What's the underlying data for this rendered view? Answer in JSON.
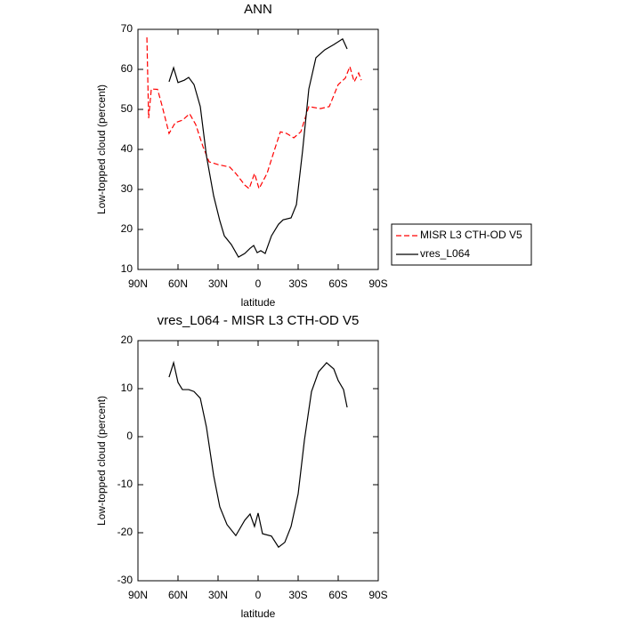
{
  "chart_data": [
    {
      "type": "line",
      "title": "ANN",
      "xlabel": "latitude",
      "ylabel": "Low-topped cloud (percent)",
      "xlim": [
        90,
        -90
      ],
      "xticks": [
        {
          "value": 90,
          "label": "90N"
        },
        {
          "value": 60,
          "label": "60N"
        },
        {
          "value": 30,
          "label": "30N"
        },
        0,
        {
          "value": -30,
          "label": "30S"
        },
        {
          "value": -60,
          "label": "60S"
        },
        {
          "value": -90,
          "label": "90S"
        }
      ],
      "ylim": [
        10,
        70
      ],
      "yticks": [
        10,
        20,
        30,
        40,
        50,
        60,
        70
      ],
      "legend": "outside right",
      "series": [
        {
          "name": "MISR L3 CTH-OD V5",
          "color": "#ff0000",
          "line_style": "dashed",
          "x": [
            83.3,
            82,
            80,
            75.3,
            72,
            66.7,
            62,
            56.7,
            51.3,
            46.7,
            41.3,
            36.7,
            30,
            21.3,
            16.7,
            10,
            6.7,
            2.7,
            -0.7,
            -6.7,
            -12,
            -16.7,
            -21.3,
            -26.7,
            -32,
            -38,
            -46.7,
            -53.3,
            -60,
            -65.3,
            -68.7,
            -72,
            -75.3,
            -77.3
          ],
          "values": [
            68,
            47.8,
            55.1,
            55,
            51,
            44,
            46.7,
            47.3,
            48.9,
            46.2,
            40.7,
            36.9,
            36.2,
            35.6,
            34,
            31.1,
            30.2,
            34,
            30.2,
            34,
            39.6,
            44.4,
            44,
            42.9,
            44.4,
            50.7,
            50.2,
            50.7,
            56.2,
            57.8,
            60.7,
            56.9,
            59.1,
            57.3
          ]
        },
        {
          "name": "vres_L064",
          "color": "#000000",
          "line_style": "solid",
          "x": [
            66.7,
            63.3,
            60,
            55.3,
            52,
            48,
            43.3,
            38.7,
            33.3,
            28.7,
            25.3,
            20,
            14.7,
            10,
            6,
            3.3,
            0.7,
            -2,
            -5.3,
            -10,
            -15.3,
            -18.7,
            -24.7,
            -28.7,
            -33.3,
            -38,
            -43.3,
            -50,
            -56.7,
            -63.3,
            -66.7
          ],
          "values": [
            56.9,
            60.4,
            56.7,
            57.3,
            58,
            56.2,
            50.7,
            38.4,
            28.4,
            22.2,
            18.4,
            16.2,
            13.1,
            14,
            15.3,
            16,
            14.2,
            14.7,
            14,
            18.4,
            21.3,
            22.4,
            22.9,
            26.2,
            39.6,
            55.1,
            62.9,
            64.9,
            66.2,
            67.6,
            65.1
          ]
        }
      ]
    },
    {
      "type": "line",
      "title": "vres_L064 - MISR L3 CTH-OD V5",
      "xlabel": "latitude",
      "ylabel": "Low-topped cloud (percent)",
      "xlim": [
        90,
        -90
      ],
      "xticks": [
        {
          "value": 90,
          "label": "90N"
        },
        {
          "value": 60,
          "label": "60N"
        },
        {
          "value": 30,
          "label": "30N"
        },
        0,
        {
          "value": -30,
          "label": "30S"
        },
        {
          "value": -60,
          "label": "60S"
        },
        {
          "value": -90,
          "label": "90S"
        }
      ],
      "ylim": [
        -30,
        20
      ],
      "yticks": [
        -30,
        -20,
        -10,
        0,
        10,
        20
      ],
      "series": [
        {
          "color": "#000000",
          "line_style": "solid",
          "x": [
            66.7,
            63.3,
            60,
            56.7,
            52,
            48,
            43.3,
            38.7,
            33.3,
            28.7,
            23.3,
            16.7,
            10,
            6,
            2.7,
            0,
            -3.3,
            -10,
            -15.3,
            -20,
            -24.7,
            -30,
            -34.7,
            -40,
            -45.3,
            -51.3,
            -56.7,
            -60,
            -64,
            -66.7
          ],
          "values": [
            12.4,
            15.4,
            11.3,
            9.8,
            9.8,
            9.4,
            8,
            2,
            -8.1,
            -14.6,
            -18.3,
            -20.6,
            -17.4,
            -16.1,
            -18.7,
            -15.9,
            -20.2,
            -20.7,
            -23,
            -22,
            -18.7,
            -11.9,
            -0.7,
            9.4,
            13.5,
            15.4,
            14.1,
            11.7,
            9.8,
            6.1
          ]
        }
      ]
    }
  ]
}
